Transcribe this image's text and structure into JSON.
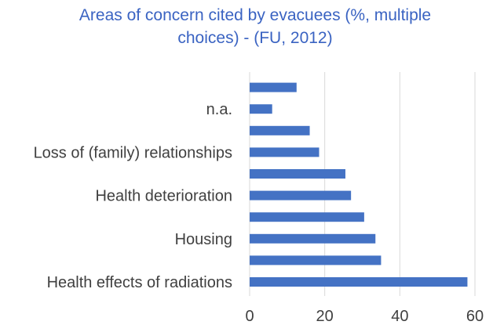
{
  "chart_data": {
    "type": "bar",
    "orientation": "horizontal",
    "title_lines": [
      "Areas of concern cited by evacuees (%, multiple",
      "choices) - (FU, 2012)"
    ],
    "categories": [
      "Health effects of radiations",
      "",
      "Housing",
      "",
      "Health deterioration",
      "",
      "Loss of (family) relationships",
      "",
      "n.a.",
      ""
    ],
    "values": [
      58,
      35,
      33.5,
      30.5,
      27,
      25.5,
      18.5,
      16,
      6,
      12.5
    ],
    "xlim": [
      0,
      60
    ],
    "xticks": [
      "0",
      "20",
      "40",
      "60"
    ],
    "grid": true,
    "bar_color": "#4472c4"
  }
}
